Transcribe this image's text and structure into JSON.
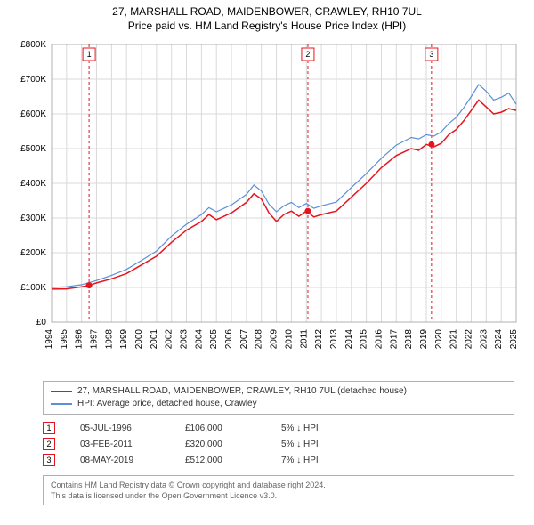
{
  "titles": {
    "main": "27, MARSHALL ROAD, MAIDENBOWER, CRAWLEY, RH10 7UL",
    "sub": "Price paid vs. HM Land Registry's House Price Index (HPI)"
  },
  "chart": {
    "type": "line",
    "background_color": "#ffffff",
    "plot_border_color": "#b0b0b0",
    "grid_color": "#d9d9d9",
    "y_axis": {
      "label_prefix": "£",
      "label_suffix": "K",
      "min": 0,
      "max": 800,
      "ticks": [
        0,
        100,
        200,
        300,
        400,
        500,
        600,
        700,
        800
      ]
    },
    "x_axis": {
      "years": [
        1994,
        1995,
        1996,
        1997,
        1998,
        1999,
        2000,
        2001,
        2002,
        2003,
        2004,
        2005,
        2006,
        2007,
        2008,
        2009,
        2010,
        2011,
        2012,
        2013,
        2014,
        2015,
        2016,
        2017,
        2018,
        2019,
        2020,
        2021,
        2022,
        2023,
        2024,
        2025
      ]
    },
    "series": [
      {
        "name": "property",
        "label": "27, MARSHALL ROAD, MAIDENBOWER, CRAWLEY, RH10 7UL (detached house)",
        "color": "#e5141e",
        "line_width": 1.5,
        "data": [
          [
            1994,
            95
          ],
          [
            1995,
            96
          ],
          [
            1996,
            102
          ],
          [
            1996.5,
            106
          ],
          [
            1997,
            113
          ],
          [
            1998,
            125
          ],
          [
            1999,
            140
          ],
          [
            2000,
            165
          ],
          [
            2001,
            190
          ],
          [
            2002,
            230
          ],
          [
            2003,
            265
          ],
          [
            2004,
            290
          ],
          [
            2004.5,
            310
          ],
          [
            2005,
            295
          ],
          [
            2006,
            315
          ],
          [
            2007,
            345
          ],
          [
            2007.5,
            370
          ],
          [
            2008,
            355
          ],
          [
            2008.5,
            315
          ],
          [
            2009,
            290
          ],
          [
            2009.5,
            310
          ],
          [
            2010,
            320
          ],
          [
            2010.5,
            305
          ],
          [
            2011,
            320
          ],
          [
            2011.5,
            303
          ],
          [
            2012,
            310
          ],
          [
            2013,
            320
          ],
          [
            2014,
            360
          ],
          [
            2015,
            400
          ],
          [
            2016,
            445
          ],
          [
            2017,
            480
          ],
          [
            2018,
            500
          ],
          [
            2018.5,
            495
          ],
          [
            2019,
            512
          ],
          [
            2019.5,
            505
          ],
          [
            2020,
            515
          ],
          [
            2020.5,
            540
          ],
          [
            2021,
            555
          ],
          [
            2021.5,
            580
          ],
          [
            2022,
            610
          ],
          [
            2022.5,
            640
          ],
          [
            2023,
            620
          ],
          [
            2023.5,
            600
          ],
          [
            2024,
            605
          ],
          [
            2024.5,
            615
          ],
          [
            2025,
            610
          ]
        ]
      },
      {
        "name": "hpi",
        "label": "HPI: Average price, detached house, Crawley",
        "color": "#5b8fd6",
        "line_width": 1.2,
        "data": [
          [
            1994,
            100
          ],
          [
            1995,
            102
          ],
          [
            1996,
            108
          ],
          [
            1997,
            120
          ],
          [
            1998,
            135
          ],
          [
            1999,
            152
          ],
          [
            2000,
            178
          ],
          [
            2001,
            205
          ],
          [
            2002,
            248
          ],
          [
            2003,
            282
          ],
          [
            2004,
            310
          ],
          [
            2004.5,
            330
          ],
          [
            2005,
            318
          ],
          [
            2006,
            338
          ],
          [
            2007,
            368
          ],
          [
            2007.5,
            395
          ],
          [
            2008,
            378
          ],
          [
            2008.5,
            340
          ],
          [
            2009,
            318
          ],
          [
            2009.5,
            335
          ],
          [
            2010,
            345
          ],
          [
            2010.5,
            330
          ],
          [
            2011,
            342
          ],
          [
            2011.5,
            328
          ],
          [
            2012,
            335
          ],
          [
            2013,
            346
          ],
          [
            2014,
            388
          ],
          [
            2015,
            428
          ],
          [
            2016,
            472
          ],
          [
            2017,
            510
          ],
          [
            2018,
            532
          ],
          [
            2018.5,
            528
          ],
          [
            2019,
            540
          ],
          [
            2019.5,
            536
          ],
          [
            2020,
            548
          ],
          [
            2020.5,
            572
          ],
          [
            2021,
            590
          ],
          [
            2021.5,
            618
          ],
          [
            2022,
            650
          ],
          [
            2022.5,
            685
          ],
          [
            2023,
            665
          ],
          [
            2023.5,
            640
          ],
          [
            2024,
            648
          ],
          [
            2024.5,
            660
          ],
          [
            2025,
            628
          ]
        ]
      }
    ],
    "markers": [
      {
        "n": "1",
        "year": 1996.5,
        "value": 106,
        "color": "#e5141e"
      },
      {
        "n": "2",
        "year": 2011.1,
        "value": 320,
        "color": "#e5141e"
      },
      {
        "n": "3",
        "year": 2019.35,
        "value": 512,
        "color": "#e5141e"
      }
    ],
    "marker_guide_line": {
      "color": "#e5141e",
      "dash": "3,3",
      "width": 1
    }
  },
  "legend": {
    "items": [
      {
        "color": "#e5141e",
        "label": "27, MARSHALL ROAD, MAIDENBOWER, CRAWLEY, RH10 7UL (detached house)"
      },
      {
        "color": "#5b8fd6",
        "label": "HPI: Average price, detached house, Crawley"
      }
    ]
  },
  "marker_rows": [
    {
      "n": "1",
      "color": "#e5141e",
      "date": "05-JUL-1996",
      "price": "£106,000",
      "delta": "5% ↓ HPI"
    },
    {
      "n": "2",
      "color": "#e5141e",
      "date": "03-FEB-2011",
      "price": "£320,000",
      "delta": "5% ↓ HPI"
    },
    {
      "n": "3",
      "color": "#e5141e",
      "date": "08-MAY-2019",
      "price": "£512,000",
      "delta": "7% ↓ HPI"
    }
  ],
  "footer": {
    "line1": "Contains HM Land Registry data © Crown copyright and database right 2024.",
    "line2": "This data is licensed under the Open Government Licence v3.0."
  }
}
